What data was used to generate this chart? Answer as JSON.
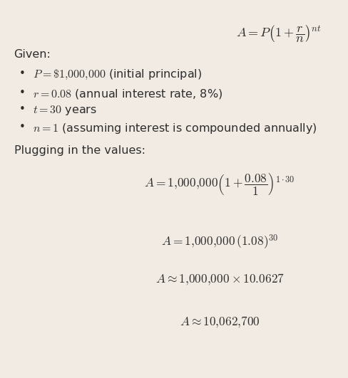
{
  "background_color": "#f2ebe3",
  "text_color": "#2d2d2d",
  "figsize": [
    4.89,
    5.31
  ],
  "dpi": 100,
  "title_formula": "$A = P\\left(1 + \\dfrac{r}{n}\\right)^{nt}$",
  "given_label": "Given:",
  "bullets": [
    "$P = \\$1{,}000{,}000$ (initial principal)",
    "$r = 0.08$ (annual interest rate, 8%)",
    "$t = 30$ years",
    "$n = 1$ (assuming interest is compounded annually)"
  ],
  "plugging_label": "Plugging in the values:",
  "eq1": "$A = 1{,}000{,}000\\left(1 + \\dfrac{0.08}{1}\\right)^{1 \\cdot 30}$",
  "eq2": "$A = 1{,}000{,}000\\,(1.08)^{30}$",
  "eq3": "$A \\approx 1{,}000{,}000 \\times 10.0627$",
  "eq4": "$A \\approx 10{,}062{,}700$"
}
